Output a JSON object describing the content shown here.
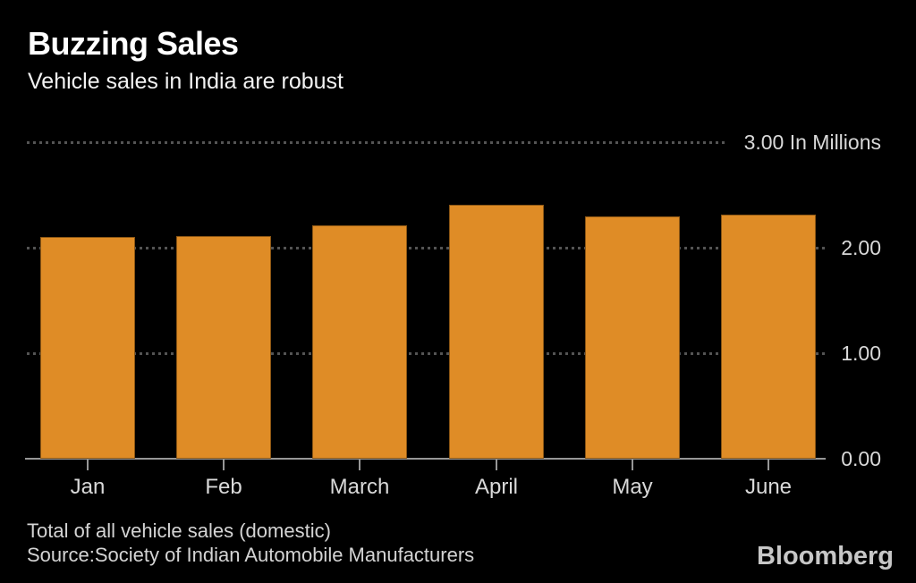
{
  "header": {
    "title": "Buzzing Sales",
    "subtitle": "Vehicle sales in India are robust"
  },
  "chart_data": {
    "type": "bar",
    "title": "Buzzing Sales",
    "subtitle": "Vehicle sales in India are robust",
    "categories": [
      "Jan",
      "Feb",
      "March",
      "April",
      "May",
      "June"
    ],
    "values": [
      2.1,
      2.11,
      2.21,
      2.41,
      2.3,
      2.31
    ],
    "series_name": "Total of all vehicle sales (domestic)",
    "unit": "In Millions",
    "xlabel": "",
    "ylabel": "In Millions",
    "ylim": [
      0,
      3
    ],
    "yticks": [
      {
        "value": 3,
        "label": "3.00 In Millions"
      },
      {
        "value": 2,
        "label": "2.00"
      },
      {
        "value": 1,
        "label": "1.00"
      },
      {
        "value": 0,
        "label": "0.00"
      }
    ],
    "grid": "dotted-horizontal",
    "legend": "none",
    "bar_color": "#df8c26",
    "background_color": "#000000",
    "gridline_color": "#545454",
    "axis_color": "#969696",
    "label_color": "#d9d9d9"
  },
  "footer": {
    "note": "Total of all vehicle sales (domestic)",
    "source": "Source:Society of Indian Automobile Manufacturers"
  },
  "branding": {
    "logo": "Bloomberg"
  }
}
